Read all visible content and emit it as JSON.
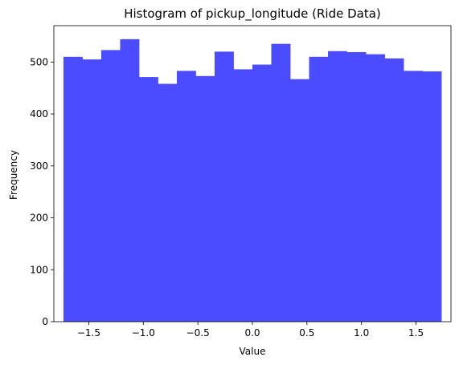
{
  "chart_data": {
    "type": "bar",
    "title": "Histogram of pickup_longitude (Ride Data)",
    "xlabel": "Value",
    "ylabel": "Frequency",
    "xlim": [
      -1.82,
      1.82
    ],
    "ylim": [
      0,
      570
    ],
    "grid": false,
    "bar_color": "#4b4bff",
    "bin_edges": [
      -1.732,
      -1.5588,
      -1.3856,
      -1.2124,
      -1.0392,
      -0.866,
      -0.6928,
      -0.5196,
      -0.3464,
      -0.1732,
      0.0,
      0.1732,
      0.3464,
      0.5196,
      0.6928,
      0.866,
      1.0392,
      1.2124,
      1.3856,
      1.5588,
      1.732
    ],
    "values": [
      510,
      505,
      523,
      544,
      471,
      458,
      483,
      473,
      520,
      486,
      495,
      535,
      467,
      510,
      521,
      519,
      515,
      507,
      483,
      482
    ],
    "x_ticks": [
      -1.5,
      -1.0,
      -0.5,
      0.0,
      0.5,
      1.0,
      1.5
    ],
    "x_tick_labels": [
      "−1.5",
      "−1.0",
      "−0.5",
      "0.0",
      "0.5",
      "1.0",
      "1.5"
    ],
    "y_ticks": [
      0,
      100,
      200,
      300,
      400,
      500
    ],
    "y_tick_labels": [
      "0",
      "100",
      "200",
      "300",
      "400",
      "500"
    ]
  }
}
